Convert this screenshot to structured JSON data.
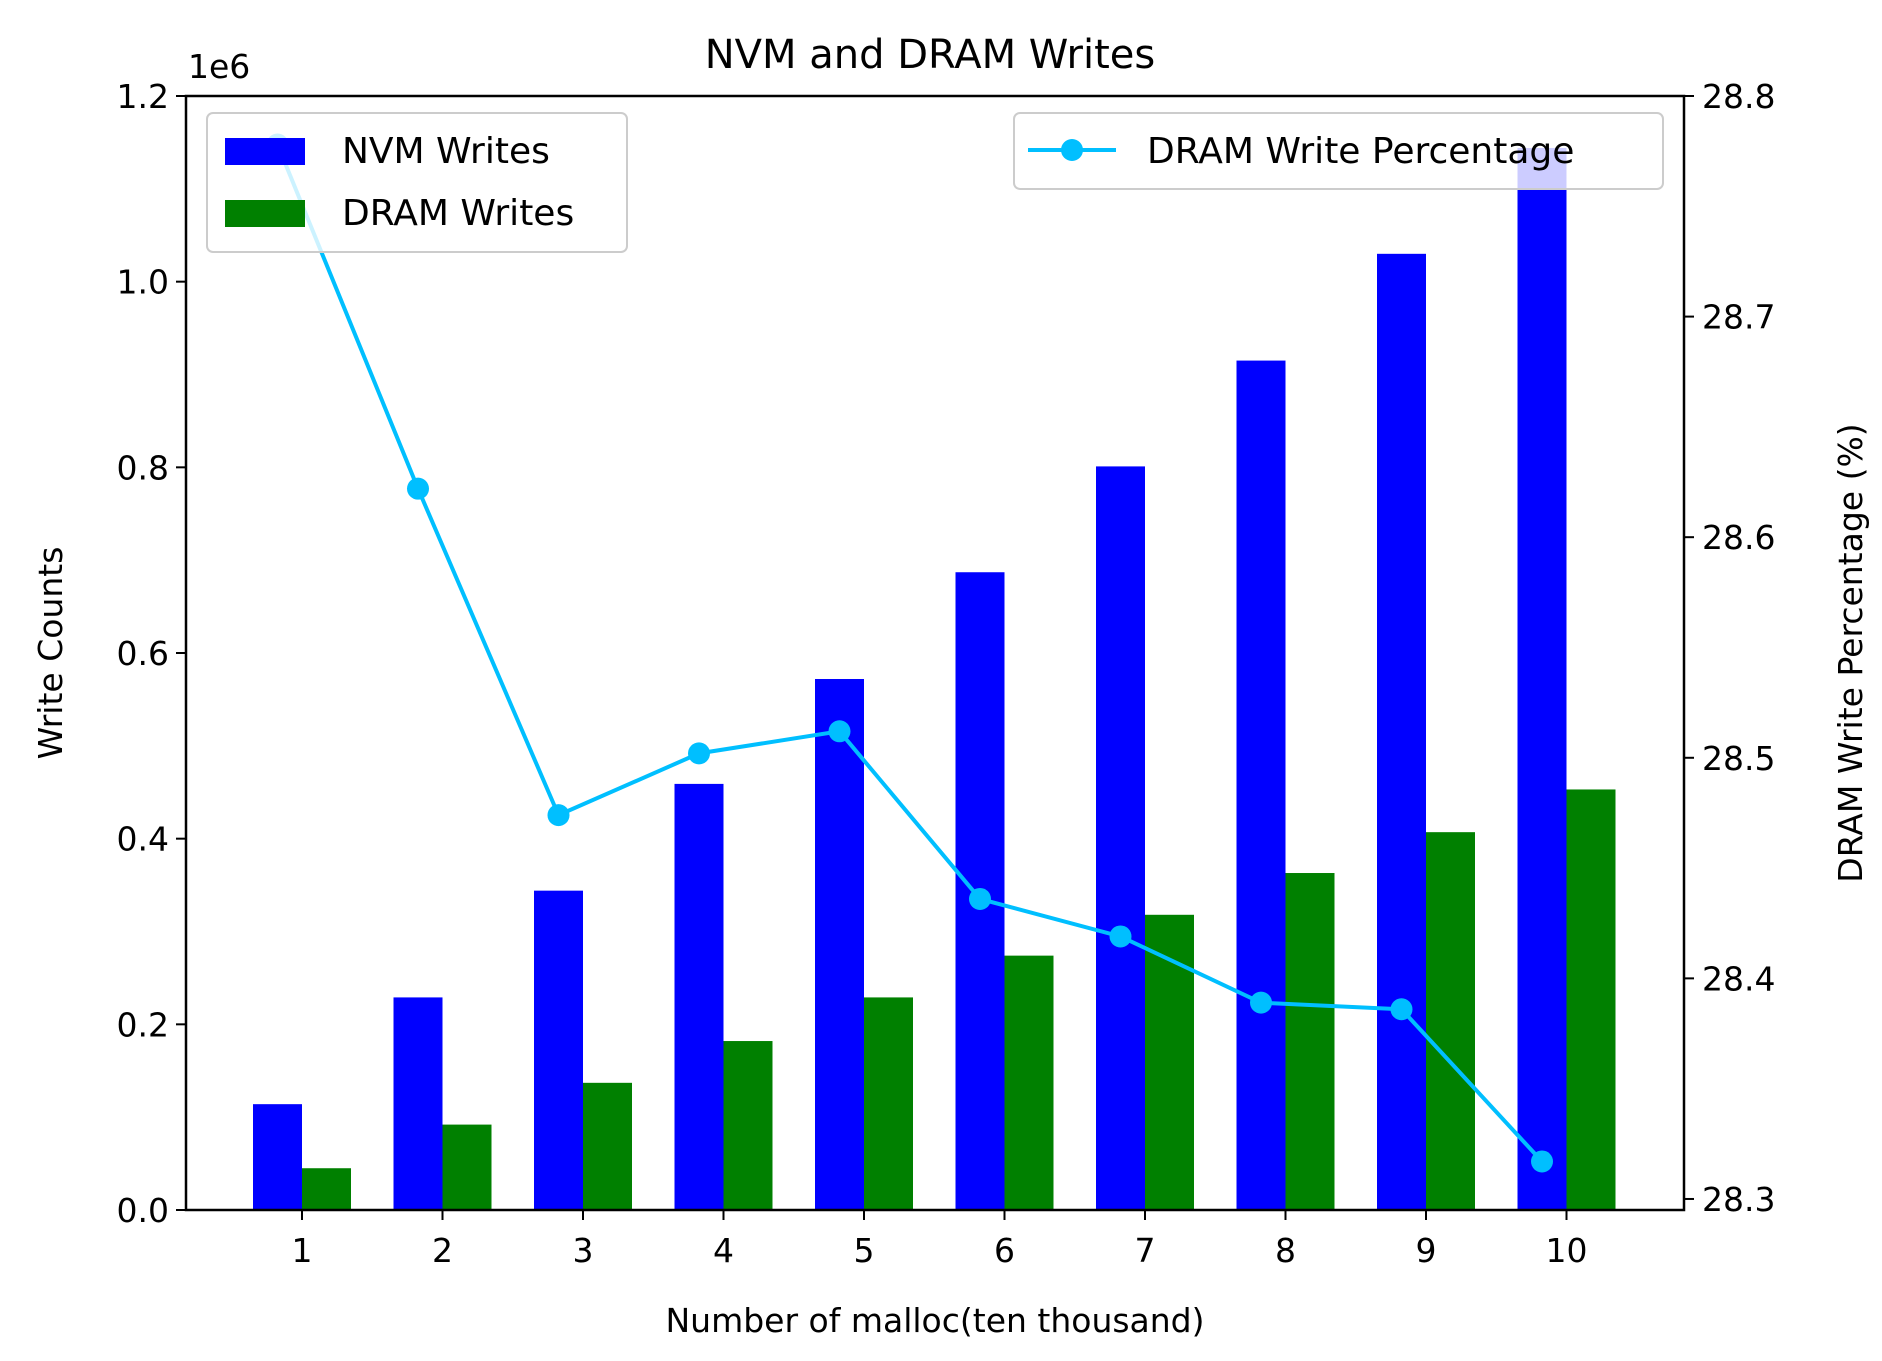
{
  "chart_data": {
    "type": "bar",
    "title": "NVM and DRAM Writes",
    "xlabel": "Number of malloc(ten thousand)",
    "ylabel": "Write Counts",
    "y2label": "DRAM Write Percentage (%)",
    "offset_label": "1e6",
    "categories": [
      "1",
      "2",
      "3",
      "4",
      "5",
      "6",
      "7",
      "8",
      "9",
      "10"
    ],
    "ylim": [
      0,
      1200000
    ],
    "y_ticks": [
      0,
      200000,
      400000,
      600000,
      800000,
      1000000,
      1200000
    ],
    "y_tick_labels": [
      "0.0",
      "0.2",
      "0.4",
      "0.6",
      "0.8",
      "1.0",
      "1.2"
    ],
    "y2lim": [
      28.295,
      28.8
    ],
    "y2_ticks": [
      28.3,
      28.4,
      28.5,
      28.6,
      28.7,
      28.8
    ],
    "y2_tick_labels": [
      "28.3",
      "28.4",
      "28.5",
      "28.6",
      "28.7",
      "28.8"
    ],
    "series": [
      {
        "name": "NVM Writes",
        "kind": "bar",
        "axis": "left",
        "color": "#0000ff",
        "values": [
          114000,
          229000,
          344000,
          459000,
          572000,
          687000,
          801000,
          915000,
          1030000,
          1144000
        ]
      },
      {
        "name": "DRAM Writes",
        "kind": "bar",
        "axis": "left",
        "color": "#008000",
        "values": [
          45000,
          92000,
          137000,
          182000,
          229000,
          274000,
          318000,
          363000,
          407000,
          453000
        ]
      },
      {
        "name": "DRAM Write Percentage",
        "kind": "line",
        "axis": "right",
        "color": "#00bfff",
        "marker": "circle",
        "values": [
          28.778,
          28.622,
          28.474,
          28.502,
          28.512,
          28.436,
          28.419,
          28.389,
          28.386,
          28.317
        ]
      }
    ],
    "legend_left": [
      "NVM Writes",
      "DRAM Writes"
    ],
    "legend_left_position": "upper-left",
    "legend_right": [
      "DRAM Write Percentage"
    ],
    "legend_right_position": "upper-right",
    "grid": false
  }
}
